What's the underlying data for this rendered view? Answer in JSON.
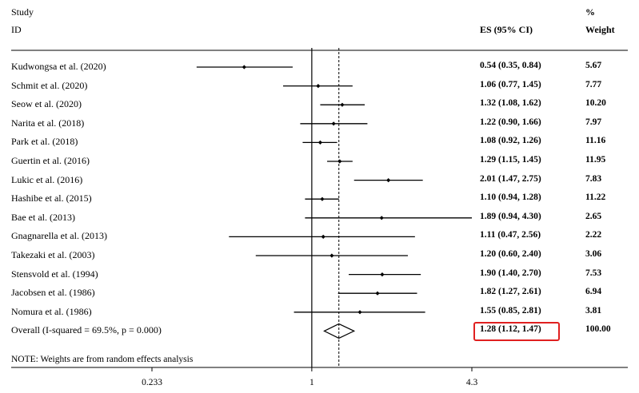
{
  "headers": {
    "study": "Study",
    "id": "ID",
    "es": "ES (95% CI)",
    "pct": "%",
    "weight": "Weight"
  },
  "note": "NOTE: Weights are from random effects analysis",
  "chart_data": {
    "type": "forest",
    "scale": "log",
    "x_ticks": [
      {
        "value": 0.233,
        "label": "0.233"
      },
      {
        "value": 1,
        "label": "1"
      },
      {
        "value": 4.3,
        "label": "4.3"
      }
    ],
    "null_line": 1,
    "pooled_line": 1.28,
    "studies": [
      {
        "label": "Kudwongsa et al. (2020)",
        "es": 0.54,
        "lo": 0.35,
        "hi": 0.84,
        "es_text": "0.54 (0.35, 0.84)",
        "weight": "5.67"
      },
      {
        "label": "Schmit et al. (2020)",
        "es": 1.06,
        "lo": 0.77,
        "hi": 1.45,
        "es_text": "1.06 (0.77, 1.45)",
        "weight": "7.77"
      },
      {
        "label": "Seow et al. (2020)",
        "es": 1.32,
        "lo": 1.08,
        "hi": 1.62,
        "es_text": "1.32 (1.08, 1.62)",
        "weight": "10.20"
      },
      {
        "label": "Narita et al. (2018)",
        "es": 1.22,
        "lo": 0.9,
        "hi": 1.66,
        "es_text": "1.22 (0.90, 1.66)",
        "weight": "7.97"
      },
      {
        "label": "Park et al. (2018)",
        "es": 1.08,
        "lo": 0.92,
        "hi": 1.26,
        "es_text": "1.08 (0.92, 1.26)",
        "weight": "11.16"
      },
      {
        "label": "Guertin et al. (2016)",
        "es": 1.29,
        "lo": 1.15,
        "hi": 1.45,
        "es_text": "1.29 (1.15, 1.45)",
        "weight": "11.95"
      },
      {
        "label": "Lukic et al. (2016)",
        "es": 2.01,
        "lo": 1.47,
        "hi": 2.75,
        "es_text": "2.01 (1.47, 2.75)",
        "weight": "7.83"
      },
      {
        "label": "Hashibe et al. (2015)",
        "es": 1.1,
        "lo": 0.94,
        "hi": 1.28,
        "es_text": "1.10 (0.94, 1.28)",
        "weight": "11.22"
      },
      {
        "label": "Bae et al. (2013)",
        "es": 1.89,
        "lo": 0.94,
        "hi": 4.3,
        "es_text": "1.89 (0.94, 4.30)",
        "weight": "2.65"
      },
      {
        "label": "Gnagnarella et al. (2013)",
        "es": 1.11,
        "lo": 0.47,
        "hi": 2.56,
        "es_text": "1.11 (0.47, 2.56)",
        "weight": "2.22"
      },
      {
        "label": "Takezaki et al. (2003)",
        "es": 1.2,
        "lo": 0.6,
        "hi": 2.4,
        "es_text": "1.20 (0.60, 2.40)",
        "weight": "3.06"
      },
      {
        "label": "Stensvold et al. (1994)",
        "es": 1.9,
        "lo": 1.4,
        "hi": 2.7,
        "es_text": "1.90 (1.40, 2.70)",
        "weight": "7.53"
      },
      {
        "label": "Jacobsen et al. (1986)",
        "es": 1.82,
        "lo": 1.27,
        "hi": 2.61,
        "es_text": "1.82 (1.27, 2.61)",
        "weight": "6.94"
      },
      {
        "label": "Nomura et al. (1986)",
        "es": 1.55,
        "lo": 0.85,
        "hi": 2.81,
        "es_text": "1.55 (0.85, 2.81)",
        "weight": "3.81"
      }
    ],
    "overall": {
      "label": "Overall  (I-squared = 69.5%, p = 0.000)",
      "es": 1.28,
      "lo": 1.12,
      "hi": 1.47,
      "es_text": "1.28 (1.12, 1.47)",
      "weight": "100.00",
      "highlight_color": "#e02020"
    }
  }
}
